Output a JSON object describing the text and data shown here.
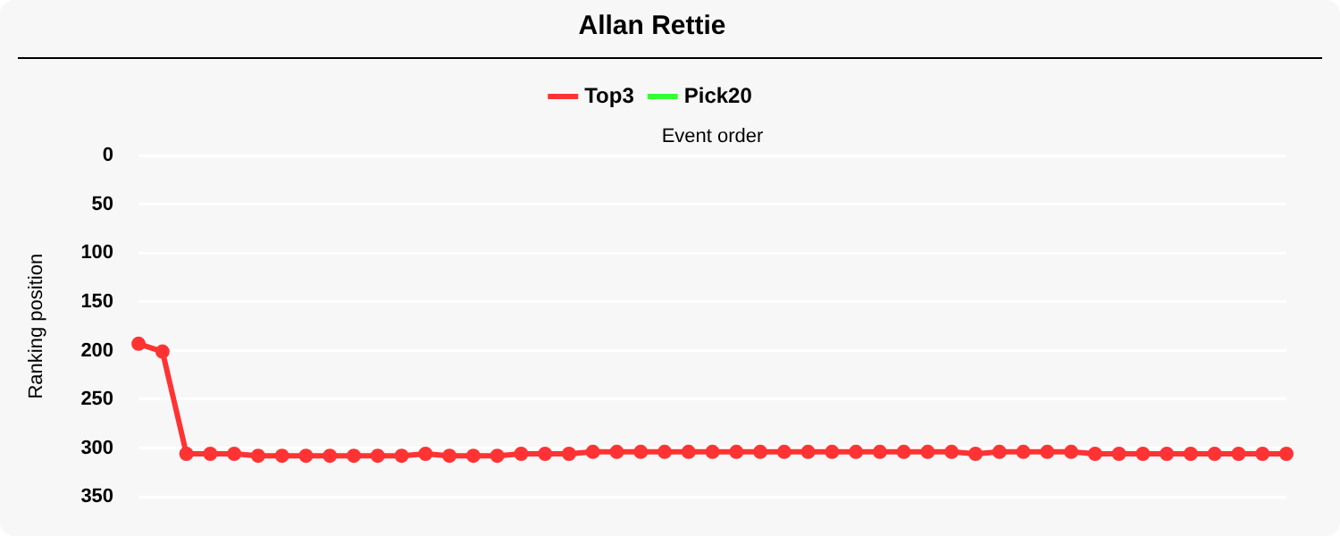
{
  "chart_data": {
    "type": "line",
    "title": "Allan Rettie",
    "xlabel": "Event order",
    "ylabel": "Ranking position",
    "categories": [
      null,
      null,
      null,
      null,
      null,
      null,
      null,
      null,
      null,
      null,
      null,
      null,
      null,
      null,
      null,
      null,
      null,
      null,
      null,
      null,
      null,
      null,
      null,
      null,
      null,
      null,
      null,
      null,
      null,
      null,
      null,
      null,
      null,
      null,
      null,
      null,
      null,
      null,
      null,
      null,
      null,
      null,
      null,
      null,
      null,
      null,
      null,
      null,
      null
    ],
    "series": [
      {
        "name": "Top3",
        "color": "#ff3333",
        "values": [
          193,
          201,
          306,
          306,
          306,
          308,
          308,
          308,
          308,
          308,
          308,
          308,
          306,
          308,
          308,
          308,
          306,
          306,
          306,
          304,
          304,
          304,
          304,
          304,
          304,
          304,
          304,
          304,
          304,
          304,
          304,
          304,
          304,
          304,
          304,
          306,
          304,
          304,
          304,
          304,
          306,
          306,
          306,
          306,
          306,
          306,
          306,
          306,
          306
        ]
      },
      {
        "name": "Pick20",
        "color": "#33ff33",
        "values": [
          null,
          null,
          null,
          null,
          null,
          null,
          null,
          null,
          null,
          null,
          null,
          null,
          null,
          null,
          null,
          null,
          null,
          null,
          null,
          null,
          null,
          null,
          null,
          null,
          null,
          null,
          null,
          null,
          null,
          null,
          null,
          null,
          null,
          null,
          null,
          null,
          null,
          null,
          null,
          null,
          null,
          null,
          null,
          null,
          null,
          null,
          null,
          null,
          null
        ]
      }
    ],
    "ylim": [
      350,
      0
    ],
    "yticks": [
      0,
      50,
      100,
      150,
      200,
      250,
      300,
      350
    ],
    "grid": "y",
    "legend": "top",
    "marker": "circle",
    "line_style": "solid",
    "tick_labels": "y"
  }
}
